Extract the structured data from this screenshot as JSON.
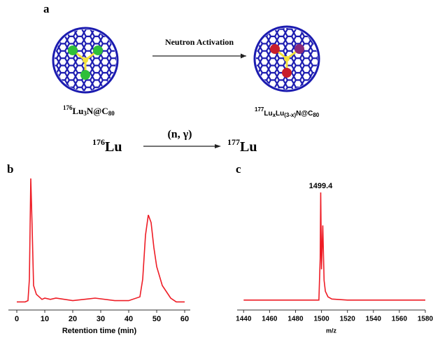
{
  "panel_a": {
    "letter": "a",
    "arrow_label": "Neutron Activation",
    "left_label": {
      "mass": "176",
      "el1": "Lu",
      "sub1": "3",
      "el2": "N@C",
      "sub2": "80"
    },
    "right_label": {
      "mass": "177",
      "el1": "Lu",
      "sub1": "x",
      "el2": "Lu",
      "sub2": "(3-x)",
      "el3": "N@C",
      "sub3": "80"
    },
    "reaction": {
      "mass1": "176",
      "el1": "Lu",
      "process": "(n, γ)",
      "mass2": "177",
      "el2": "Lu"
    }
  },
  "chart_data": [
    {
      "type": "line",
      "panel_label": "b",
      "xlabel": "Retention time (min)",
      "color": "#ee1c25",
      "x": [
        0,
        3,
        4,
        4.5,
        5,
        5.5,
        6,
        7,
        8,
        9,
        10,
        12,
        14,
        20,
        28,
        35,
        40,
        44,
        45,
        46,
        47,
        48,
        49,
        50,
        52,
        55,
        57,
        60
      ],
      "values": [
        2,
        2,
        3,
        20,
        100,
        60,
        15,
        8,
        6,
        4,
        5,
        4,
        5,
        3,
        5,
        3,
        3,
        6,
        20,
        55,
        71,
        65,
        45,
        30,
        15,
        5,
        2,
        2
      ],
      "xlim": [
        -3,
        62
      ],
      "xticks": [
        0,
        10,
        20,
        30,
        40,
        50,
        60
      ],
      "ylim": [
        0,
        100
      ]
    },
    {
      "type": "line",
      "panel_label": "c",
      "xlabel": "m/z",
      "color": "#ee1c25",
      "x": [
        1440,
        1460,
        1480,
        1498,
        1499,
        1499.4,
        1500,
        1501,
        1502,
        1503,
        1505,
        1508,
        1520,
        1540,
        1560,
        1580
      ],
      "values": [
        2,
        2,
        2,
        2,
        40,
        100,
        30,
        70,
        20,
        10,
        5,
        3,
        2,
        2,
        2,
        2
      ],
      "xlim": [
        1435,
        1580
      ],
      "xticks": [
        1440,
        1460,
        1480,
        1500,
        1520,
        1540,
        1560,
        1580
      ],
      "ylim": [
        0,
        100
      ],
      "annotations": [
        {
          "text": "1499.4",
          "x": 1499.4
        }
      ]
    }
  ]
}
